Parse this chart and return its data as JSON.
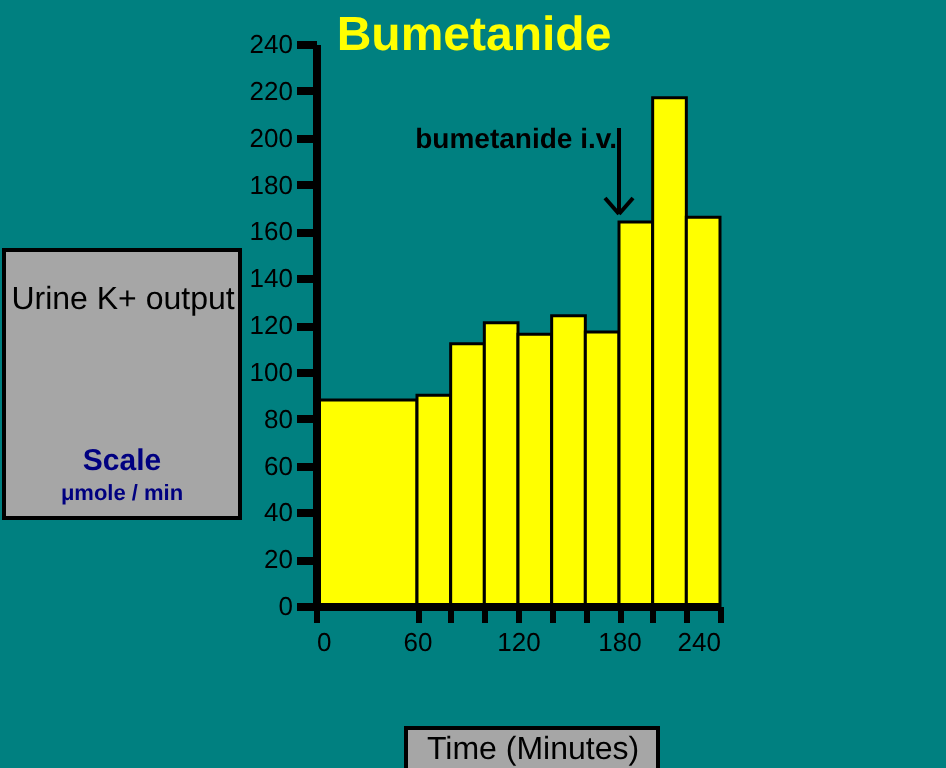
{
  "chart_data": {
    "type": "histogram",
    "title": "Bumetanide",
    "xlabel": "Time (Minutes)",
    "ylabel": "Urine K+ output",
    "bins": [
      0,
      60,
      80,
      100,
      120,
      140,
      160,
      180,
      200,
      220,
      240
    ],
    "values": [
      88,
      90,
      112,
      121,
      116,
      124,
      117,
      164,
      217,
      166
    ],
    "color": "#ffff00",
    "xlim": [
      0,
      240
    ],
    "xticks": [
      0,
      60,
      {
        "value": 80,
        "label": null
      },
      {
        "value": 100,
        "label": null
      },
      120,
      {
        "value": 140,
        "label": null
      },
      {
        "value": 160,
        "label": null
      },
      180,
      {
        "value": 200,
        "label": null
      },
      {
        "value": 220,
        "label": null
      },
      240
    ],
    "ylim": [
      0,
      240
    ],
    "yticks": [
      0,
      20,
      40,
      60,
      80,
      100,
      120,
      140,
      160,
      180,
      200,
      220,
      240
    ],
    "annotations": [
      {
        "text": "bumetanide i.v.",
        "x": 180,
        "y": 164
      },
      "Scale",
      "μmole / min"
    ],
    "grid": false
  }
}
